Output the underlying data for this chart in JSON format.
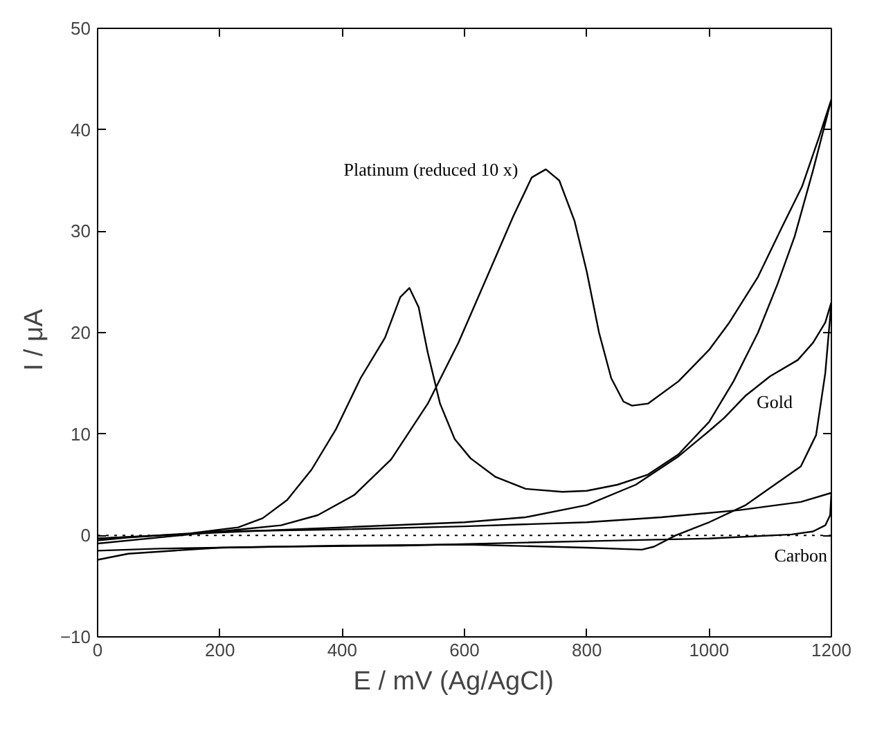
{
  "chart_data": {
    "type": "line",
    "xlabel": "E  /  mV  (Ag/AgCl)",
    "ylabel": "I  /  μA",
    "xlim": [
      0,
      1200
    ],
    "xticks": [
      0,
      200,
      400,
      600,
      800,
      1000,
      1200
    ],
    "ylim": [
      -10,
      50
    ],
    "yticks": [
      -10,
      0,
      10,
      20,
      30,
      40,
      50
    ],
    "grid": false,
    "marker": "none",
    "line_style": "solid",
    "ref_lines": [
      {
        "axis": "y",
        "value": 0,
        "label": null,
        "color": "#000000",
        "line_style": "dotted"
      }
    ],
    "series": [
      {
        "name": "Platinum (reduced 10 x)",
        "color": "#000000",
        "x": [
          0,
          100,
          200,
          300,
          360,
          420,
          480,
          540,
          590,
          639,
          680,
          710,
          733,
          755,
          780,
          800,
          820,
          840,
          860,
          874,
          900,
          950,
          1000,
          1032,
          1080,
          1120,
          1152,
          1180,
          1200,
          1170,
          1140,
          1112,
          1080,
          1040,
          1000,
          950,
          900,
          850,
          800,
          760,
          700,
          650,
          610,
          584,
          560,
          540,
          525,
          510,
          495,
          470,
          430,
          390,
          350,
          310,
          270,
          230,
          150,
          50,
          0
        ],
        "values": [
          -0.3,
          0,
          0.4,
          1,
          2,
          4,
          7.5,
          13,
          19,
          25.8,
          31.5,
          35.3,
          36.1,
          35,
          31,
          26,
          20,
          15.5,
          13.2,
          12.8,
          13,
          15.2,
          18.3,
          20.9,
          25.5,
          30.5,
          34.4,
          39.3,
          43,
          36,
          29.5,
          24.8,
          20,
          15.2,
          11.2,
          8,
          6,
          5,
          4.4,
          4.3,
          4.6,
          5.8,
          7.6,
          9.5,
          13,
          18,
          22.5,
          24.4,
          23.5,
          19.5,
          15.5,
          10.5,
          6.5,
          3.5,
          1.7,
          0.8,
          0.2,
          -0.2,
          -0.5
        ]
      },
      {
        "name": "Gold",
        "color": "#000000",
        "x": [
          0,
          200,
          400,
          600,
          700,
          800,
          880,
          950,
          1000,
          1025,
          1060,
          1100,
          1145,
          1170,
          1190,
          1200,
          1190,
          1175,
          1150,
          1112,
          1060,
          1000,
          945,
          910,
          890,
          800,
          600,
          400,
          200,
          50,
          0
        ],
        "values": [
          -0.3,
          0.3,
          0.8,
          1.3,
          1.8,
          3,
          5,
          7.8,
          10.3,
          11.6,
          13.8,
          15.7,
          17.3,
          19,
          21,
          23,
          16,
          9.9,
          6.8,
          5.2,
          3,
          1.3,
          0,
          -1.1,
          -1.4,
          -1.2,
          -0.9,
          -1.0,
          -1.2,
          -1.8,
          -2.4
        ]
      },
      {
        "name": "Carbon",
        "color": "#000000",
        "x": [
          0,
          200,
          400,
          600,
          800,
          922,
          1050,
          1150,
          1200,
          1198,
          1190,
          1170,
          1135,
          1000,
          850,
          700,
          500,
          300,
          100,
          0
        ],
        "values": [
          -0.8,
          0.4,
          0.6,
          0.9,
          1.3,
          1.8,
          2.5,
          3.3,
          4.2,
          2,
          1,
          0.4,
          0.1,
          -0.3,
          -0.5,
          -0.7,
          -1.0,
          -1.1,
          -1.3,
          -1.5
        ]
      }
    ]
  }
}
